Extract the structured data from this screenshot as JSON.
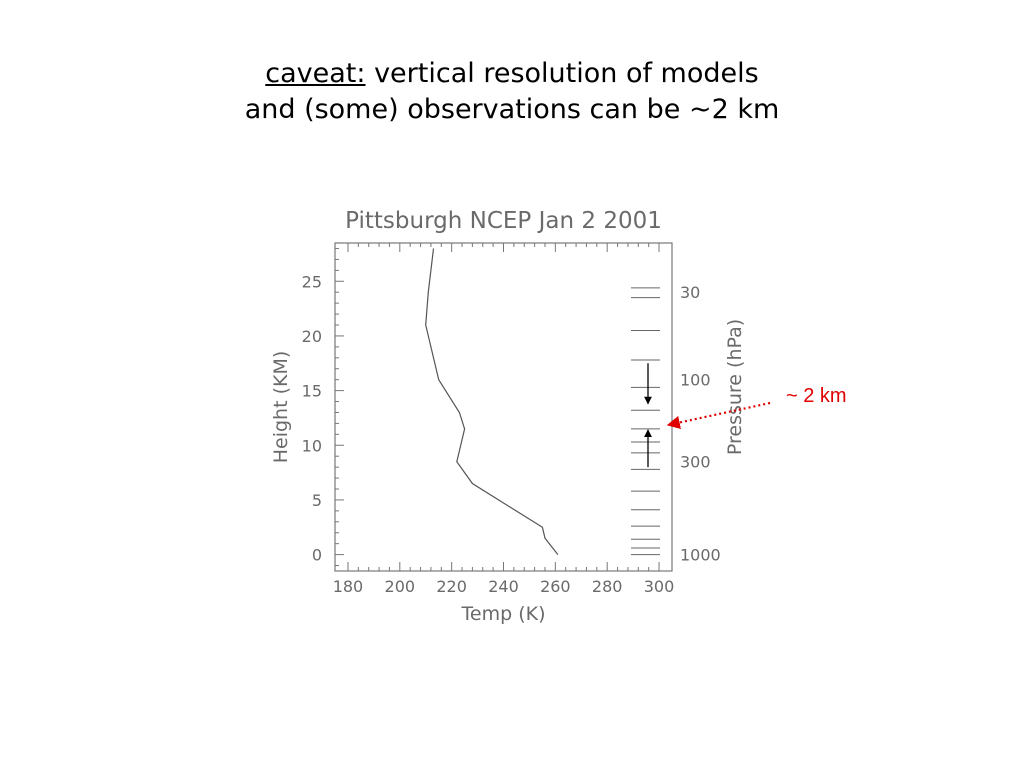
{
  "slide": {
    "title_prefix": "caveat:",
    "title_line1_rest": " vertical resolution of models",
    "title_line2": "and (some) observations can be ~2 km"
  },
  "annotation": {
    "label": "~ 2 km",
    "color": "#e00000"
  },
  "chart_data": {
    "type": "line",
    "title": "Pittsburgh NCEP Jan 2 2001",
    "xlabel": "Temp (K)",
    "ylabel": "Height (KM)",
    "ylabel_right": "Pressure (hPa)",
    "xlim": [
      175,
      305
    ],
    "ylim": [
      -1.5,
      28.5
    ],
    "xticks": [
      180,
      200,
      220,
      240,
      260,
      280,
      300
    ],
    "yticks": [
      0,
      5,
      10,
      15,
      20,
      25
    ],
    "right_ticks": [
      {
        "label": "30",
        "height": 24
      },
      {
        "label": "100",
        "height": 16
      },
      {
        "label": "300",
        "height": 8.5
      },
      {
        "label": "1000",
        "height": 0
      }
    ],
    "series": [
      {
        "x": [
          261,
          256,
          255,
          228,
          222,
          225,
          223,
          215,
          210,
          211,
          213
        ],
        "y": [
          0,
          1.5,
          2.5,
          6.5,
          8.5,
          11.5,
          13,
          16,
          21,
          24,
          28
        ],
        "color": "#555555"
      }
    ],
    "model_levels_km": [
      0,
      0.6,
      1.4,
      2.6,
      4.1,
      5.8,
      7.8,
      9.3,
      10.3,
      11.5,
      13.2,
      15.3,
      17.8,
      20.5,
      23.5,
      24.4
    ],
    "resolution_arrows_km": [
      [
        17.5,
        13.8
      ],
      [
        8.0,
        11.4
      ]
    ],
    "grid": false
  }
}
